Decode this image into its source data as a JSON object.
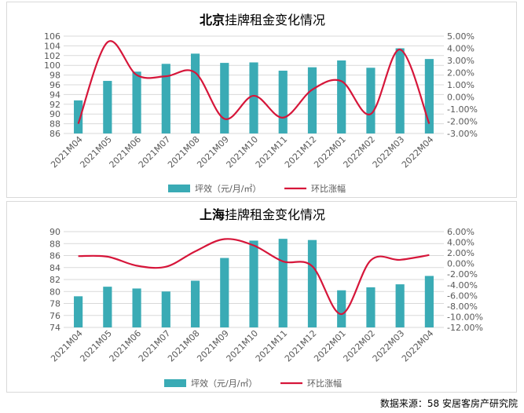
{
  "source": "数据来源：58 安居客房产研究院",
  "colors": {
    "bar": "#3aabb5",
    "line": "#d6163a",
    "grid": "#d9d9d9",
    "text": "#595959"
  },
  "chart_data": [
    {
      "type": "bar",
      "title_bold": "北京",
      "title_rest": "挂牌租金变化情况",
      "categories": [
        "2021M04",
        "2021M05",
        "2021M06",
        "2021M07",
        "2021M08",
        "2021M09",
        "2021M10",
        "2021M11",
        "2021M12",
        "2022M01",
        "2022M02",
        "2022M03",
        "2022M04"
      ],
      "series": [
        {
          "name": "坪效（元/月/㎡）",
          "type": "bar",
          "axis": "left",
          "values": [
            92.8,
            96.8,
            98.7,
            100.3,
            102.4,
            100.5,
            100.6,
            98.9,
            99.6,
            101.0,
            99.5,
            103.5,
            101.3
          ]
        },
        {
          "name": "环比涨幅",
          "type": "line",
          "axis": "right",
          "values": [
            -2.2,
            4.5,
            1.8,
            1.7,
            2.0,
            -1.8,
            0.1,
            -1.7,
            0.6,
            1.3,
            -1.4,
            3.9,
            -2.2
          ]
        }
      ],
      "y_left": {
        "min": 86,
        "max": 106,
        "step": 2
      },
      "y_right": {
        "min": -3.0,
        "max": 5.0,
        "step": 1.0
      },
      "y_left_ticks": [
        "86",
        "88",
        "90",
        "92",
        "94",
        "96",
        "98",
        "100",
        "102",
        "104",
        "106"
      ],
      "y_right_ticks": [
        "-3.00%",
        "-2.00%",
        "-1.00%",
        "0.00%",
        "1.00%",
        "2.00%",
        "3.00%",
        "4.00%",
        "5.00%"
      ],
      "grid": true,
      "legend_position": "bottom"
    },
    {
      "type": "bar",
      "title_bold": "上海",
      "title_rest": "挂牌租金变化情况",
      "categories": [
        "2021M04",
        "2021M05",
        "2021M06",
        "2021M07",
        "2021M08",
        "2021M09",
        "2021M10",
        "2021M11",
        "2021M12",
        "2022M01",
        "2022M02",
        "2022M03",
        "2022M04"
      ],
      "series": [
        {
          "name": "坪效（元/月/㎡）",
          "type": "bar",
          "axis": "left",
          "values": [
            79.2,
            80.8,
            80.5,
            80.0,
            81.8,
            85.6,
            88.5,
            88.8,
            88.6,
            80.2,
            80.7,
            81.2,
            82.6
          ]
        },
        {
          "name": "环比涨幅",
          "type": "line",
          "axis": "right",
          "values": [
            1.4,
            1.3,
            -0.4,
            -0.6,
            2.3,
            4.6,
            3.4,
            0.4,
            -0.5,
            -9.5,
            0.6,
            0.7,
            1.6
          ]
        }
      ],
      "y_left": {
        "min": 74,
        "max": 90,
        "step": 2
      },
      "y_right": {
        "min": -12.0,
        "max": 6.0,
        "step": 2.0
      },
      "y_left_ticks": [
        "74",
        "76",
        "78",
        "80",
        "82",
        "84",
        "86",
        "88",
        "90"
      ],
      "y_right_ticks": [
        "-12.00%",
        "-10.00%",
        "-8.00%",
        "-6.00%",
        "-4.00%",
        "-2.00%",
        "0.00%",
        "2.00%",
        "4.00%",
        "6.00%"
      ],
      "grid": true,
      "legend_position": "bottom"
    }
  ]
}
